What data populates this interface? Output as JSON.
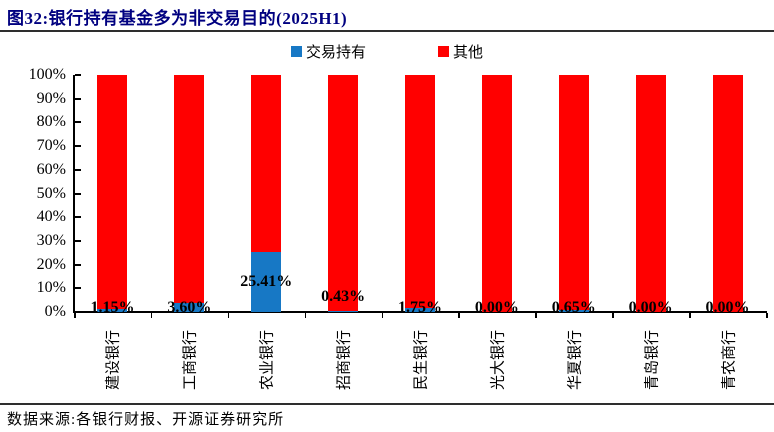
{
  "title": "图32:银行持有基金多为非交易目的(2025H1)",
  "legend": {
    "items": [
      {
        "label": "交易持有",
        "color": "#1778C5"
      },
      {
        "label": "其他",
        "color": "#FF0000"
      }
    ]
  },
  "source": "数据来源:各银行财报、开源证券研究所",
  "chart_data": {
    "type": "bar",
    "stacked": true,
    "title": "银行持有基金多为非交易目的(2025H1)",
    "categories": [
      "建设银行",
      "工商银行",
      "农业银行",
      "招商银行",
      "民生银行",
      "光大银行",
      "华夏银行",
      "青岛银行",
      "青农商行"
    ],
    "series": [
      {
        "name": "交易持有",
        "color": "#1778C5",
        "values": [
          1.15,
          3.6,
          25.41,
          0.43,
          1.75,
          0.0,
          0.65,
          0.0,
          0.0
        ]
      },
      {
        "name": "其他",
        "color": "#FF0000",
        "values": [
          98.85,
          96.4,
          74.59,
          99.57,
          98.25,
          100.0,
          99.35,
          100.0,
          100.0
        ]
      }
    ],
    "data_labels": [
      "1.15%",
      "3.60%",
      "25.41%",
      "0.43%",
      "1.75%",
      "0.00%",
      "0.65%",
      "0.00%",
      "0.00%"
    ],
    "y_ticks": [
      "0%",
      "10%",
      "20%",
      "30%",
      "40%",
      "50%",
      "60%",
      "70%",
      "80%",
      "90%",
      "100%"
    ],
    "ylim": [
      0,
      100
    ],
    "grid": false,
    "legend_position": "top-center",
    "xlabel": "",
    "ylabel": ""
  }
}
